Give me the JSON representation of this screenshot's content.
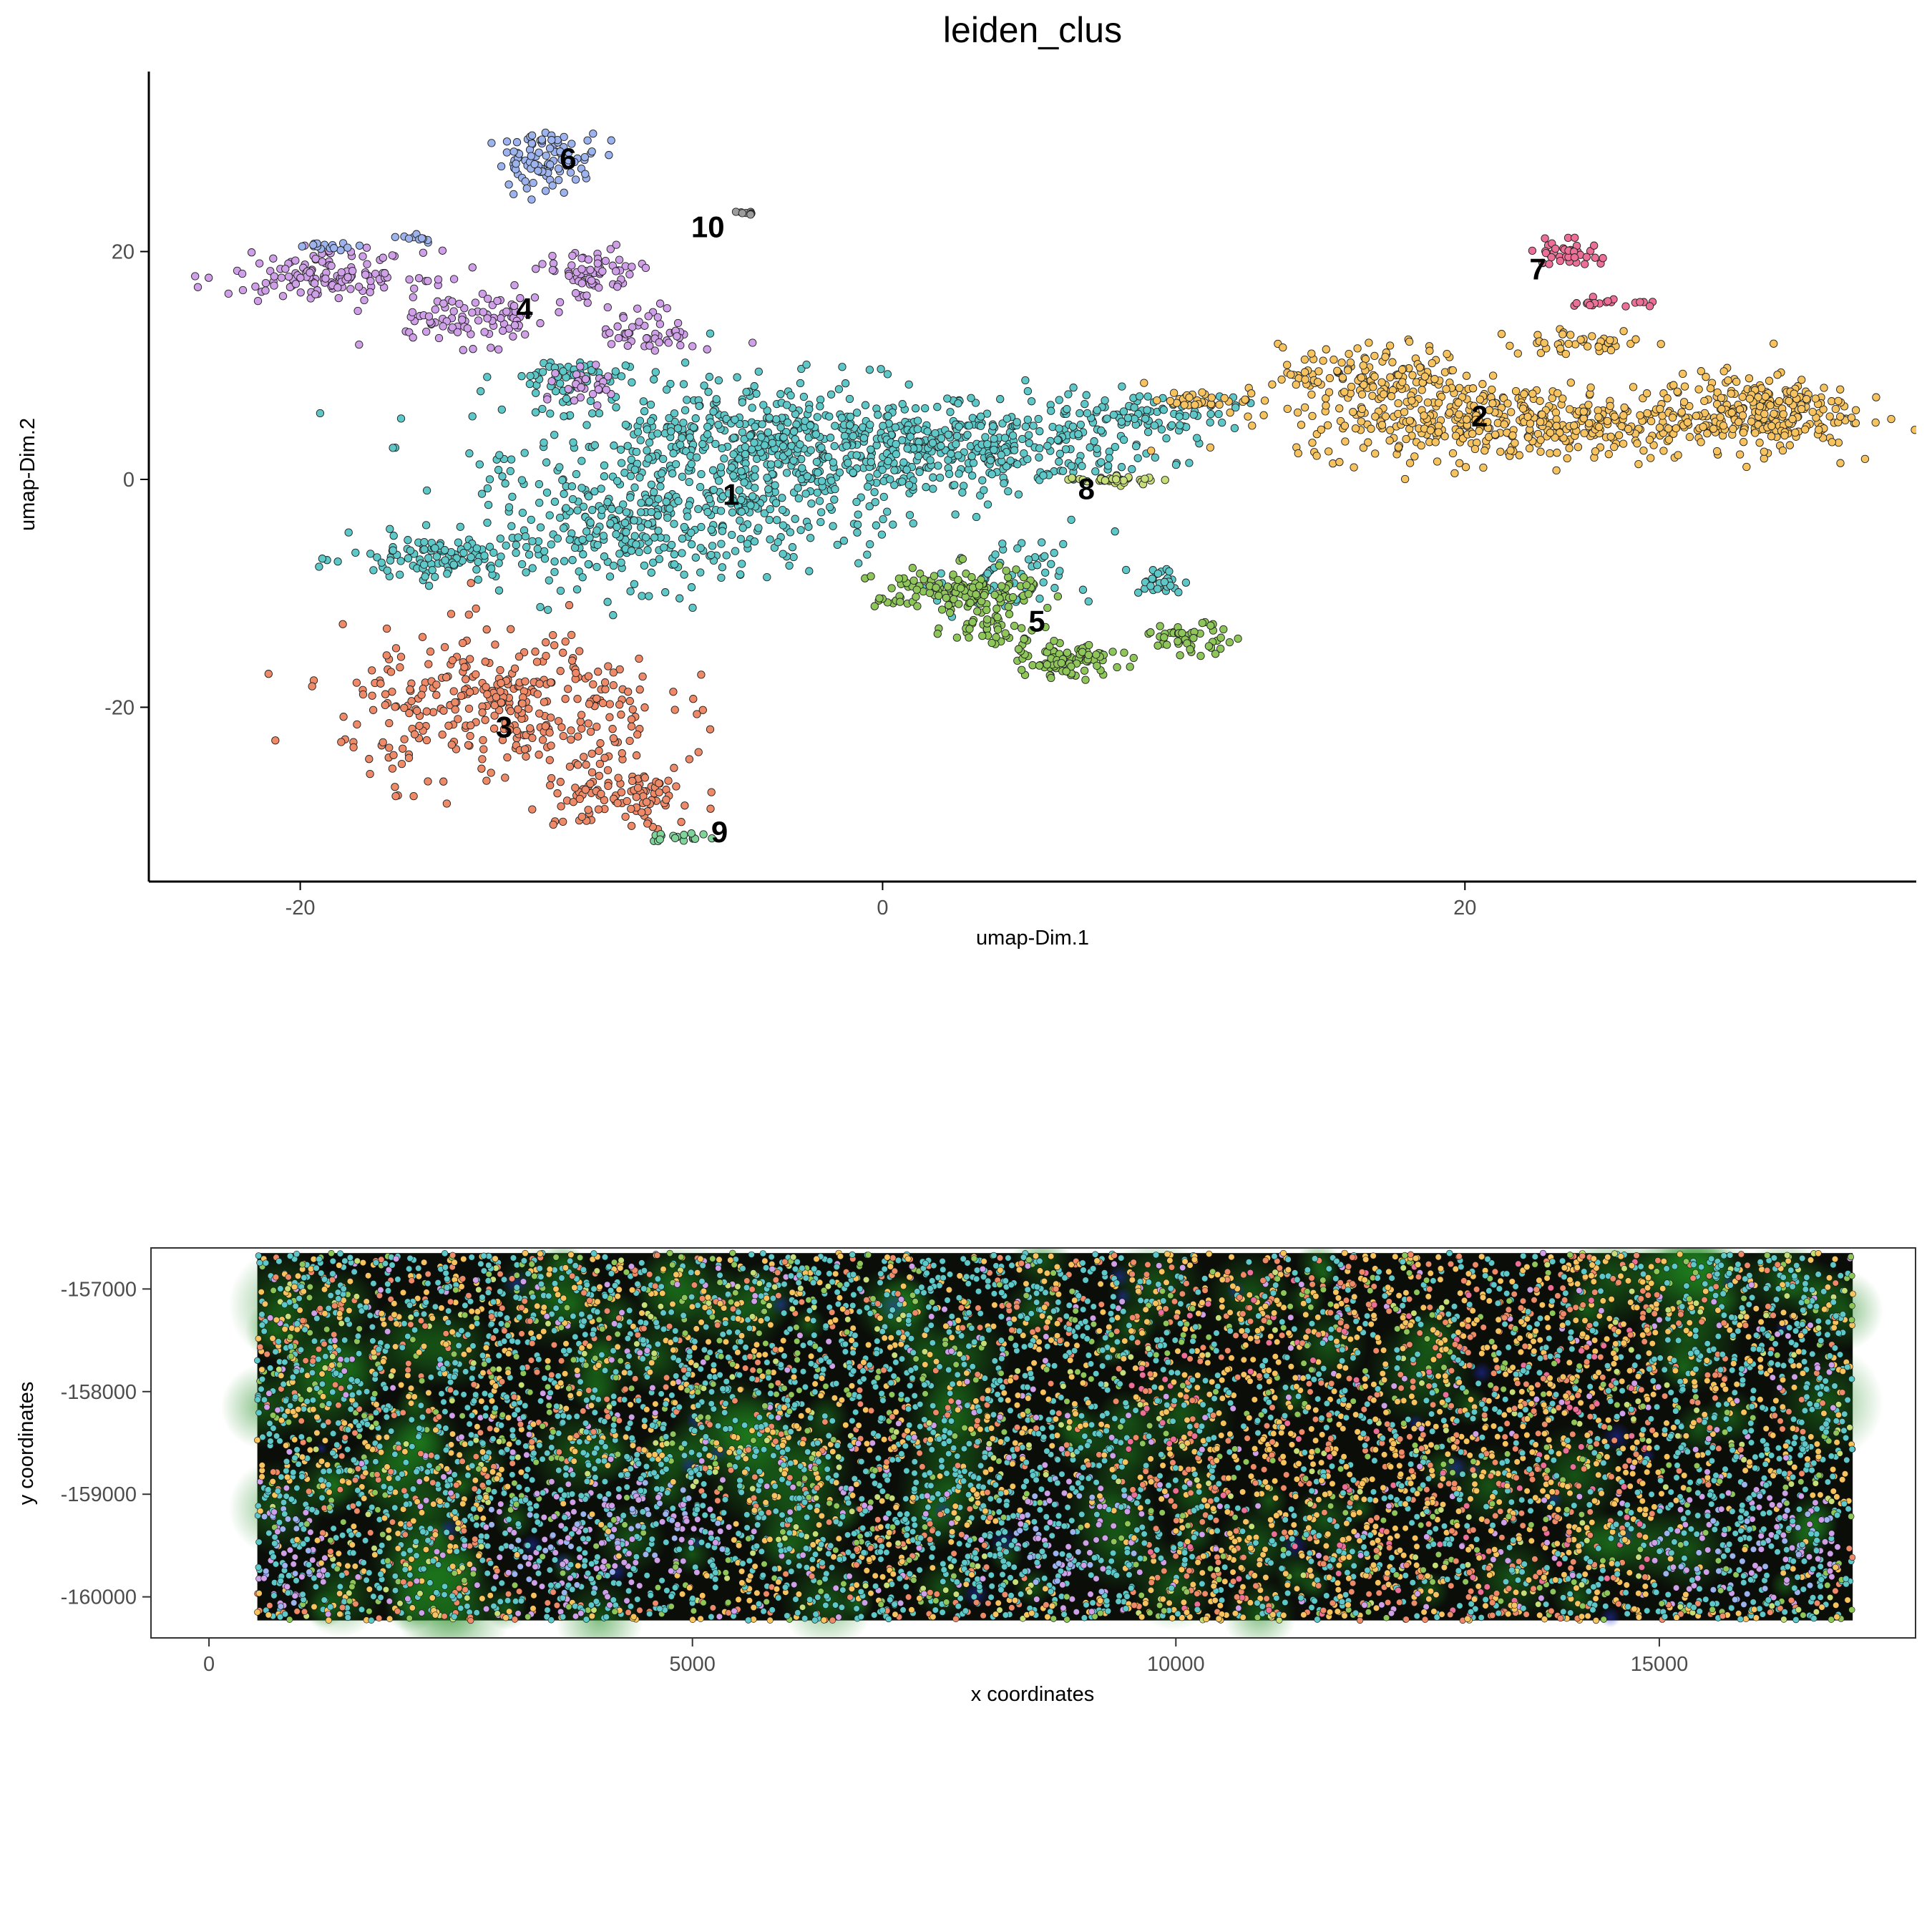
{
  "chart_data": [
    {
      "type": "scatter",
      "title": "leiden_clus",
      "xlabel": "umap-Dim.1",
      "ylabel": "umap-Dim.2",
      "xlim": [
        -25.2,
        35.5
      ],
      "ylim": [
        -35.3,
        35.8
      ],
      "xticks": [
        -20,
        0,
        20
      ],
      "yticks": [
        -20,
        0,
        20
      ],
      "grid": false,
      "legend": "none",
      "clusters": [
        {
          "name": "1",
          "color": "#5ec8c8",
          "label_pos": [
            -5.2,
            -1.3
          ],
          "blobs": [
            [
              -4,
              2,
              8,
              6,
              700
            ],
            [
              3,
              3,
              6,
              3,
              300
            ],
            [
              -8,
              -5,
              5,
              4,
              250
            ],
            [
              -15,
              -7,
              3,
              2,
              120
            ],
            [
              9,
              6,
              3,
              1.5,
              80
            ],
            [
              -11,
              9,
              2,
              1.5,
              60
            ],
            [
              4,
              -9,
              2,
              3,
              60
            ],
            [
              9.5,
              -9,
              0.8,
              1.2,
              30
            ]
          ]
        },
        {
          "name": "2",
          "color": "#f6c35e",
          "label_pos": [
            20.5,
            5.6
          ],
          "blobs": [
            [
              22,
              5,
              7,
              3,
              450
            ],
            [
              30,
              6,
              3,
              3,
              250
            ],
            [
              17,
              9,
              3,
              2.5,
              150
            ],
            [
              11,
              7,
              1.5,
              0.6,
              30
            ],
            [
              24,
              12,
              2.5,
              1,
              40
            ]
          ]
        },
        {
          "name": "3",
          "color": "#ef8a68",
          "label_pos": [
            -13,
            -21.7
          ],
          "blobs": [
            [
              -13,
              -20,
              5,
              6,
              350
            ],
            [
              -9,
              -28,
              2.5,
              2.5,
              100
            ]
          ]
        },
        {
          "name": "4",
          "color": "#cfa0e8",
          "label_pos": [
            -12.3,
            15
          ],
          "blobs": [
            [
              -19,
              18,
              3,
              1.8,
              140
            ],
            [
              -14,
              14,
              3,
              2,
              90
            ],
            [
              -10,
              18,
              1.5,
              2,
              70
            ],
            [
              -8,
              13,
              1.5,
              2,
              50
            ],
            [
              -10,
              8,
              1,
              1.5,
              30
            ]
          ]
        },
        {
          "name": "5",
          "color": "#8ec65a",
          "label_pos": [
            5.3,
            -12.4
          ],
          "blobs": [
            [
              2.5,
              -10,
              2.5,
              2,
              150
            ],
            [
              6.5,
              -16,
              1.5,
              1.2,
              90
            ],
            [
              10.5,
              -14,
              1.5,
              1.2,
              50
            ],
            [
              4,
              -13,
              1.5,
              1.5,
              40
            ]
          ]
        },
        {
          "name": "6",
          "color": "#9db3ed",
          "label_pos": [
            -10.8,
            28.2
          ],
          "blobs": [
            [
              -11.5,
              28,
              1.6,
              2.3,
              100
            ],
            [
              -19,
              20.5,
              1,
              0.3,
              15
            ],
            [
              -16,
              21.2,
              1,
              0.3,
              10
            ]
          ]
        },
        {
          "name": "7",
          "color": "#ec6f97",
          "label_pos": [
            22.5,
            18.5
          ],
          "blobs": [
            [
              23.5,
              20,
              1,
              1.2,
              40
            ],
            [
              25,
              15.5,
              1.3,
              0.4,
              20
            ]
          ]
        },
        {
          "name": "8",
          "color": "#c5de78",
          "label_pos": [
            7,
            -0.8
          ],
          "blobs": [
            [
              8,
              0,
              1.6,
              0.35,
              40
            ]
          ]
        },
        {
          "name": "9",
          "color": "#7fd49a",
          "label_pos": [
            -5.6,
            -30.9
          ],
          "blobs": [
            [
              -7,
              -31.5,
              1,
              0.4,
              18
            ]
          ]
        },
        {
          "name": "10",
          "color": "#9c9c9c",
          "label_pos": [
            -6,
            22.2
          ],
          "blobs": [
            [
              -4.8,
              23.4,
              0.4,
              0.15,
              8
            ]
          ]
        }
      ]
    },
    {
      "type": "scatter",
      "title": "",
      "xlabel": "x coordinates",
      "ylabel": "y coordinates",
      "xlim": [
        -600,
        17650
      ],
      "ylim": [
        -160400,
        -156600
      ],
      "xticks": [
        0,
        5000,
        10000,
        15000
      ],
      "yticks": [
        -157000,
        -158000,
        -159000,
        -160000
      ],
      "yticklabels": [
        "-157000",
        "-158000",
        "-159000",
        "-160000"
      ],
      "grid": false,
      "legend": "none",
      "background_image": "dark fluorescence tissue image with green and blue staining",
      "image_extent": {
        "x": [
          500,
          17000
        ],
        "y": [
          -160230,
          -156650
        ]
      },
      "cell_count": 9000
    }
  ]
}
